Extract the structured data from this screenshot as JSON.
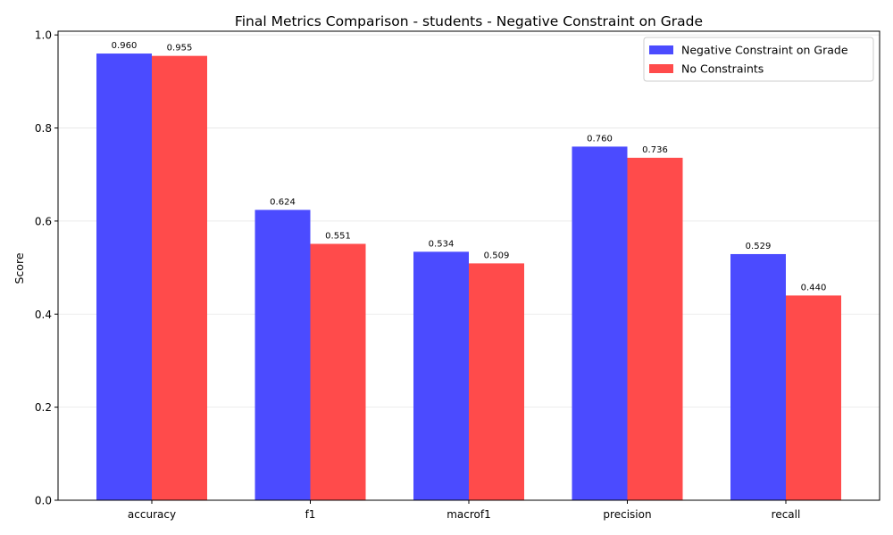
{
  "chart_data": {
    "type": "bar",
    "title": "Final Metrics Comparison - students - Negative Constraint on Grade",
    "xlabel": "",
    "ylabel": "Score",
    "ylim": [
      0,
      1.008
    ],
    "yticks": [
      0.0,
      0.2,
      0.4,
      0.6,
      0.8,
      1.0
    ],
    "ytick_labels": [
      "0.0",
      "0.2",
      "0.4",
      "0.6",
      "0.8",
      "1.0"
    ],
    "categories": [
      "accuracy",
      "f1",
      "macrof1",
      "precision",
      "recall"
    ],
    "grid": true,
    "legend_position": "top-right",
    "series": [
      {
        "name": "Negative Constraint on Grade",
        "color": "#4b4bff",
        "values": [
          0.96,
          0.624,
          0.534,
          0.76,
          0.529
        ],
        "labels": [
          "0.960",
          "0.624",
          "0.534",
          "0.760",
          "0.529"
        ]
      },
      {
        "name": "No Constraints",
        "color": "#ff4b4b",
        "values": [
          0.955,
          0.551,
          0.509,
          0.736,
          0.44
        ],
        "labels": [
          "0.955",
          "0.551",
          "0.509",
          "0.736",
          "0.440"
        ]
      }
    ]
  }
}
